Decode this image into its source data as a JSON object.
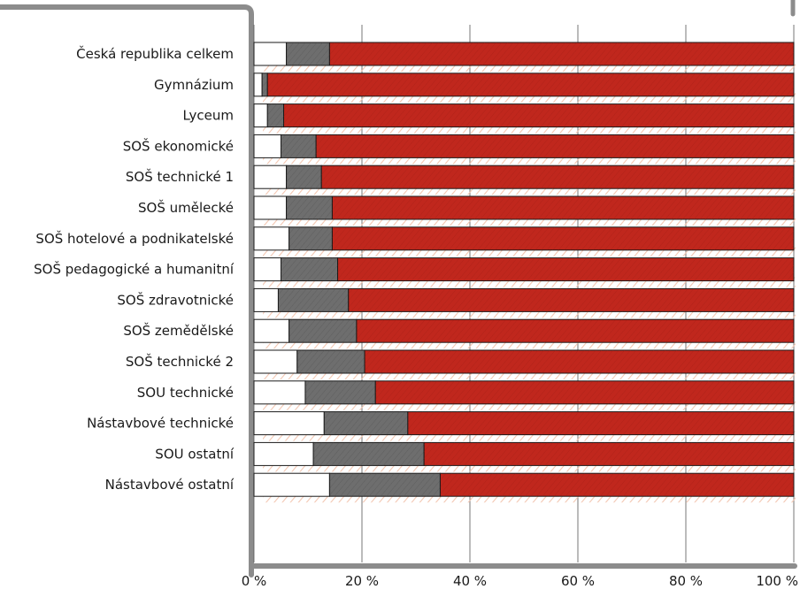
{
  "chart_data": {
    "type": "bar",
    "orientation": "horizontal",
    "stacked": true,
    "categories": [
      "Česká republika celkem",
      "Gymnázium",
      "Lyceum",
      "SOŠ ekonomické",
      "SOŠ technické 1",
      "SOŠ umělecké",
      "SOŠ hotelové a podnikatelské",
      "SOŠ pedagogické a humanitní",
      "SOŠ zdravotnické",
      "SOŠ zemědělské",
      "SOŠ technické 2",
      "SOU technické",
      "Nástavbové technické",
      "SOU ostatní",
      "Nástavbové ostatní"
    ],
    "series": [
      {
        "color": "#ffffff",
        "values": [
          6.0,
          1.5,
          2.5,
          5.0,
          6.0,
          6.0,
          6.5,
          5.0,
          4.5,
          6.5,
          8.0,
          9.5,
          13.0,
          11.0,
          14.0
        ]
      },
      {
        "color": "#6e6e6e",
        "values": [
          8.0,
          1.0,
          3.0,
          6.5,
          6.5,
          8.5,
          8.0,
          10.5,
          13.0,
          12.5,
          12.5,
          13.0,
          15.5,
          20.5,
          20.5
        ]
      },
      {
        "color": "#c0271d",
        "values": [
          86.0,
          97.5,
          94.5,
          88.5,
          87.5,
          85.5,
          85.5,
          84.5,
          82.5,
          81.0,
          79.5,
          77.5,
          71.5,
          68.5,
          65.5
        ]
      }
    ],
    "xlim": [
      0,
      100
    ],
    "xticks": [
      "0 %",
      "20 %",
      "40 %",
      "60 %",
      "80 %",
      "100 %"
    ],
    "xlabel": "",
    "ylabel": "",
    "title": "",
    "grid": true,
    "legend": "none"
  }
}
